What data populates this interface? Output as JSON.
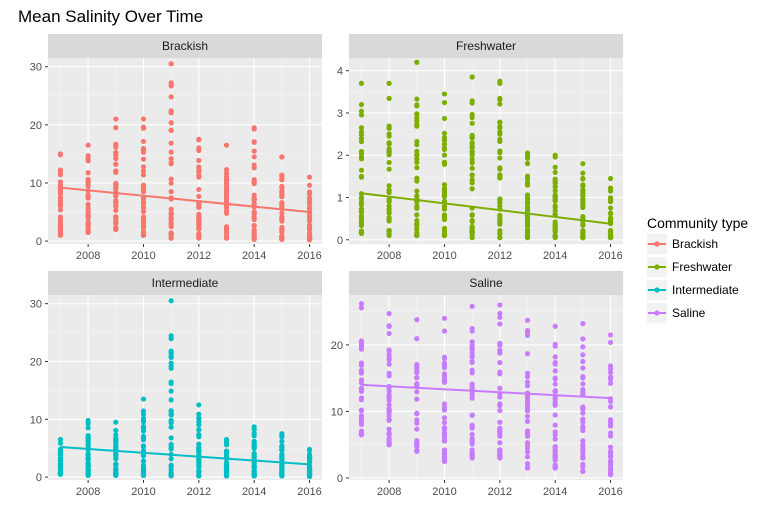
{
  "title": "Mean Salinity Over Time",
  "chart_data": {
    "type": "scatter",
    "title": "Mean Salinity Over Time",
    "xlabel": "",
    "ylabel": "",
    "x_breaks": [
      2008,
      2010,
      2012,
      2014,
      2016
    ],
    "x_range": [
      2007,
      2016
    ],
    "grid": true,
    "legend": {
      "title": "Community type",
      "position": "right",
      "entries": [
        {
          "name": "Brackish",
          "color": "#F8766D"
        },
        {
          "name": "Freshwater",
          "color": "#7CAE00"
        },
        {
          "name": "Intermediate",
          "color": "#00BFC4"
        },
        {
          "name": "Saline",
          "color": "#C77CFF"
        }
      ]
    },
    "panels": [
      {
        "name": "Brackish",
        "color": "#F8766D",
        "ylim": [
          -0.5,
          31.5
        ],
        "y_breaks": [
          0,
          10,
          20,
          30
        ],
        "trend": {
          "x": [
            2007,
            2016
          ],
          "y": [
            9.2,
            5.0
          ]
        },
        "series": [
          {
            "x": 2007,
            "min": 1.0,
            "max": 15.0
          },
          {
            "x": 2008,
            "min": 1.5,
            "max": 16.5
          },
          {
            "x": 2009,
            "min": 2.0,
            "max": 21.0
          },
          {
            "x": 2010,
            "min": 1.0,
            "max": 21.0
          },
          {
            "x": 2011,
            "min": 0.5,
            "max": 30.5
          },
          {
            "x": 2012,
            "min": 0.5,
            "max": 17.5
          },
          {
            "x": 2013,
            "min": 0.5,
            "max": 16.5
          },
          {
            "x": 2014,
            "min": 0.3,
            "max": 19.5
          },
          {
            "x": 2015,
            "min": 0.3,
            "max": 14.5
          },
          {
            "x": 2016,
            "min": 0.2,
            "max": 11.0
          }
        ]
      },
      {
        "name": "Freshwater",
        "color": "#7CAE00",
        "ylim": [
          -0.1,
          4.3
        ],
        "y_breaks": [
          0,
          1,
          2,
          3,
          4
        ],
        "trend": {
          "x": [
            2007,
            2016
          ],
          "y": [
            1.1,
            0.38
          ]
        },
        "series": [
          {
            "x": 2007,
            "min": 0.15,
            "max": 3.7
          },
          {
            "x": 2008,
            "min": 0.1,
            "max": 3.7
          },
          {
            "x": 2009,
            "min": 0.1,
            "max": 4.2
          },
          {
            "x": 2010,
            "min": 0.1,
            "max": 3.45
          },
          {
            "x": 2011,
            "min": 0.05,
            "max": 3.85
          },
          {
            "x": 2012,
            "min": 0.05,
            "max": 3.75
          },
          {
            "x": 2013,
            "min": 0.05,
            "max": 2.05
          },
          {
            "x": 2014,
            "min": 0.05,
            "max": 2.0
          },
          {
            "x": 2015,
            "min": 0.05,
            "max": 1.8
          },
          {
            "x": 2016,
            "min": 0.05,
            "max": 1.45
          }
        ]
      },
      {
        "name": "Intermediate",
        "color": "#00BFC4",
        "ylim": [
          -0.5,
          31.5
        ],
        "y_breaks": [
          0,
          10,
          20,
          30
        ],
        "trend": {
          "x": [
            2007,
            2016
          ],
          "y": [
            5.2,
            2.2
          ]
        },
        "series": [
          {
            "x": 2007,
            "min": 0.5,
            "max": 6.5
          },
          {
            "x": 2008,
            "min": 0.3,
            "max": 9.8
          },
          {
            "x": 2009,
            "min": 0.3,
            "max": 9.5
          },
          {
            "x": 2010,
            "min": 0.3,
            "max": 13.5
          },
          {
            "x": 2011,
            "min": 0.2,
            "max": 30.5
          },
          {
            "x": 2012,
            "min": 0.2,
            "max": 12.5
          },
          {
            "x": 2013,
            "min": 0.2,
            "max": 6.5
          },
          {
            "x": 2014,
            "min": 0.2,
            "max": 8.7
          },
          {
            "x": 2015,
            "min": 0.2,
            "max": 7.5
          },
          {
            "x": 2016,
            "min": 0.1,
            "max": 4.8
          }
        ]
      },
      {
        "name": "Saline",
        "color": "#C77CFF",
        "ylim": [
          -0.3,
          27.5
        ],
        "y_breaks": [
          0,
          10,
          20
        ],
        "trend": {
          "x": [
            2007,
            2016
          ],
          "y": [
            14.0,
            12.0
          ]
        },
        "series": [
          {
            "x": 2007,
            "min": 6.5,
            "max": 26.2
          },
          {
            "x": 2008,
            "min": 5.0,
            "max": 24.7
          },
          {
            "x": 2009,
            "min": 4.0,
            "max": 23.8
          },
          {
            "x": 2010,
            "min": 2.5,
            "max": 24.0
          },
          {
            "x": 2011,
            "min": 3.0,
            "max": 25.8
          },
          {
            "x": 2012,
            "min": 3.0,
            "max": 26.0
          },
          {
            "x": 2013,
            "min": 1.5,
            "max": 23.7
          },
          {
            "x": 2014,
            "min": 1.5,
            "max": 22.8
          },
          {
            "x": 2015,
            "min": 1.0,
            "max": 23.2
          },
          {
            "x": 2016,
            "min": 0.5,
            "max": 21.5
          }
        ]
      }
    ]
  }
}
